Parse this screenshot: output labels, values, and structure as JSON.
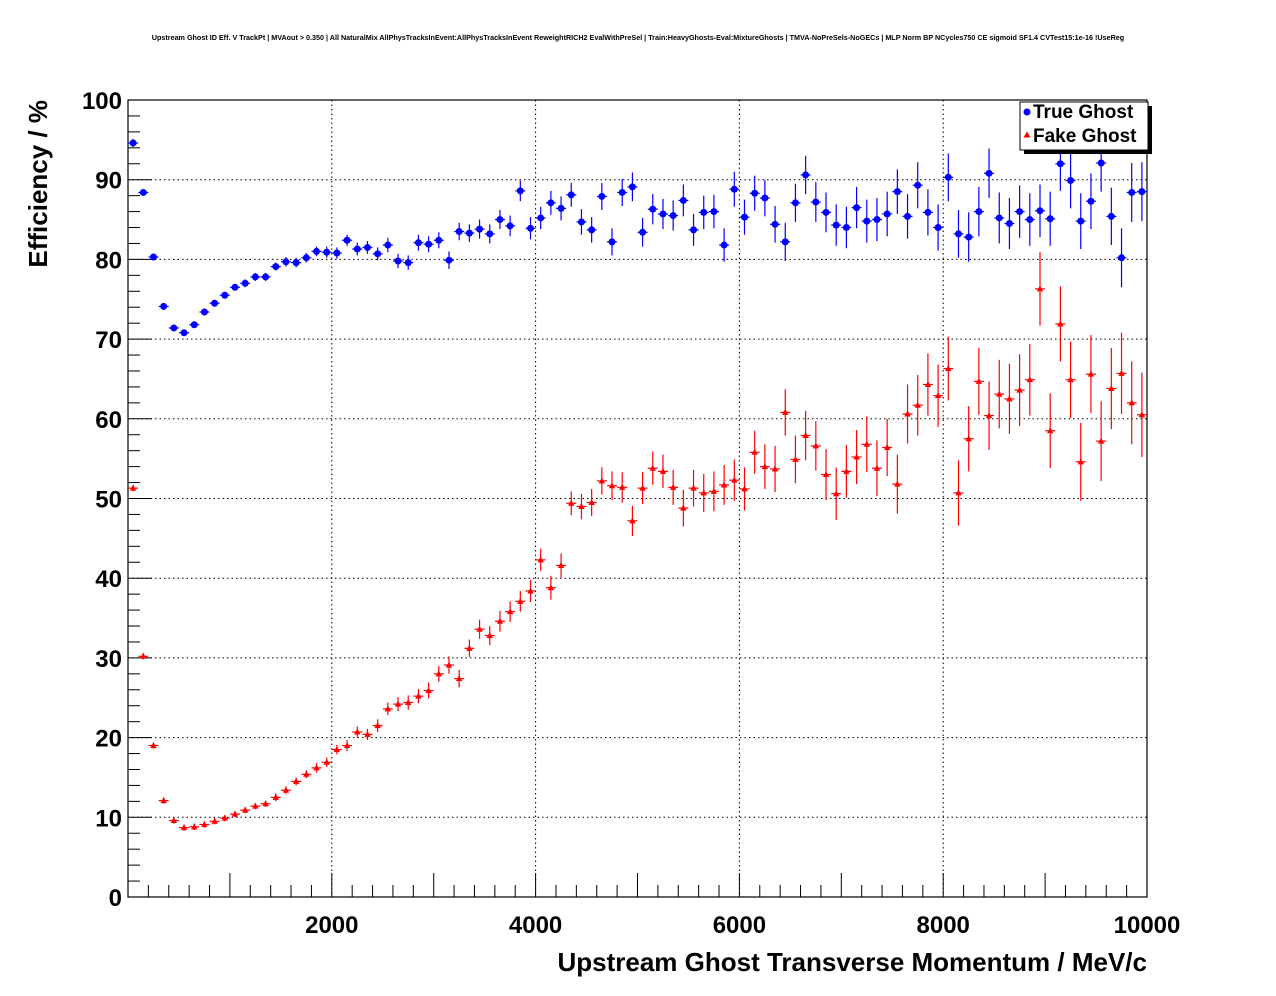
{
  "chart_data": {
    "type": "scatter",
    "title": "Upstream Ghost ID Eff. V TrackPt | MVAout > 0.350 | All NaturalMix AllPhysTracksInEvent:AllPhysTracksInEvent ReweightRICH2 EvalWithPreSel | Train:HeavyGhosts-Eval:MixtureGhosts | TMVA-NoPreSels-NoGECs | MLP Norm BP NCycles750 CE sigmoid SF1.4 CVTest15:1e-16 !UseReg",
    "xlabel": "Upstream Ghost Transverse Momentum / MeV/c",
    "ylabel": "Efficiency / %",
    "xlim": [
      0,
      10000
    ],
    "ylim": [
      0,
      100
    ],
    "x_ticks": [
      "2000",
      "4000",
      "6000",
      "8000",
      "10000"
    ],
    "y_ticks": [
      "0",
      "10",
      "20",
      "30",
      "40",
      "50",
      "60",
      "70",
      "80",
      "90",
      "100"
    ],
    "grid": true,
    "legend_position": "top-right",
    "series": [
      {
        "name": "True Ghost",
        "color": "#0000ff",
        "marker": "circle",
        "x": [
          50,
          150,
          250,
          350,
          450,
          550,
          650,
          750,
          850,
          950,
          1050,
          1150,
          1250,
          1350,
          1450,
          1550,
          1650,
          1750,
          1850,
          1950,
          2050,
          2150,
          2250,
          2350,
          2450,
          2550,
          2650,
          2750,
          2850,
          2950,
          3050,
          3150,
          3250,
          3350,
          3450,
          3550,
          3650,
          3750,
          3850,
          3950,
          4050,
          4150,
          4250,
          4350,
          4450,
          4550,
          4650,
          4750,
          4850,
          4950,
          5050,
          5150,
          5250,
          5350,
          5450,
          5550,
          5650,
          5750,
          5850,
          5950,
          6050,
          6150,
          6250,
          6350,
          6450,
          6550,
          6650,
          6750,
          6850,
          6950,
          7050,
          7150,
          7250,
          7350,
          7450,
          7550,
          7650,
          7750,
          7850,
          7950,
          8050,
          8150,
          8250,
          8350,
          8450,
          8550,
          8650,
          8750,
          8850,
          8950,
          9050,
          9150,
          9250,
          9350,
          9450,
          9550,
          9650,
          9750,
          9850,
          9950
        ],
        "y": [
          94.6,
          88.4,
          80.3,
          74.1,
          71.4,
          70.8,
          71.8,
          73.4,
          74.5,
          75.5,
          76.5,
          77.0,
          77.8,
          77.8,
          79.1,
          79.7,
          79.6,
          80.2,
          81.0,
          80.9,
          80.8,
          82.4,
          81.3,
          81.5,
          80.7,
          81.8,
          79.8,
          79.6,
          82.1,
          81.9,
          82.4,
          79.9,
          83.5,
          83.3,
          83.8,
          83.2,
          85.0,
          84.2,
          88.6,
          83.9,
          85.2,
          87.1,
          86.4,
          88.1,
          84.7,
          83.7,
          87.9,
          82.2,
          88.4,
          89.1,
          83.4,
          86.3,
          85.7,
          85.5,
          87.4,
          83.7,
          85.9,
          86.0,
          81.8,
          88.8,
          85.3,
          88.3,
          87.7,
          84.4,
          82.2,
          87.1,
          90.6,
          87.2,
          85.9,
          84.3,
          84.0,
          86.5,
          84.8,
          85.0,
          85.7,
          88.5,
          85.4,
          89.3,
          85.9,
          84.0,
          90.3,
          83.2,
          82.8,
          86.0,
          90.8,
          85.2,
          84.5,
          86.0,
          85.0,
          86.1,
          85.1,
          92.0,
          89.9,
          84.8,
          87.3,
          92.1,
          85.4,
          80.2,
          88.4,
          88.5
        ],
        "y_err": [
          0.5,
          0.4,
          0.4,
          0.4,
          0.4,
          0.4,
          0.4,
          0.4,
          0.4,
          0.4,
          0.4,
          0.5,
          0.5,
          0.5,
          0.5,
          0.6,
          0.6,
          0.6,
          0.6,
          0.7,
          0.7,
          0.7,
          0.8,
          0.8,
          0.8,
          0.9,
          0.9,
          0.9,
          1.0,
          1.0,
          1.0,
          1.1,
          1.1,
          1.1,
          1.2,
          1.2,
          1.2,
          1.3,
          1.3,
          1.4,
          1.4,
          1.5,
          1.5,
          1.5,
          1.6,
          1.6,
          1.7,
          1.7,
          1.7,
          1.8,
          1.8,
          1.9,
          1.9,
          1.9,
          2.0,
          2.0,
          2.1,
          2.1,
          2.1,
          2.2,
          2.2,
          2.2,
          2.3,
          2.3,
          2.4,
          2.4,
          2.4,
          2.5,
          2.5,
          2.6,
          2.6,
          2.6,
          2.7,
          2.7,
          2.8,
          2.8,
          2.8,
          2.9,
          2.9,
          2.9,
          3.0,
          3.0,
          3.1,
          3.1,
          3.1,
          3.2,
          3.2,
          3.3,
          3.3,
          3.3,
          3.4,
          3.4,
          3.5,
          3.5,
          3.5,
          3.6,
          3.6,
          3.7,
          3.7,
          3.7
        ]
      },
      {
        "name": "Fake Ghost",
        "color": "#ff0000",
        "marker": "triangle",
        "x": [
          50,
          150,
          250,
          350,
          450,
          550,
          650,
          750,
          850,
          950,
          1050,
          1150,
          1250,
          1350,
          1450,
          1550,
          1650,
          1750,
          1850,
          1950,
          2050,
          2150,
          2250,
          2350,
          2450,
          2550,
          2650,
          2750,
          2850,
          2950,
          3050,
          3150,
          3250,
          3350,
          3450,
          3550,
          3650,
          3750,
          3850,
          3950,
          4050,
          4150,
          4250,
          4350,
          4450,
          4550,
          4650,
          4750,
          4850,
          4950,
          5050,
          5150,
          5250,
          5350,
          5450,
          5550,
          5650,
          5750,
          5850,
          5950,
          6050,
          6150,
          6250,
          6350,
          6450,
          6550,
          6650,
          6750,
          6850,
          6950,
          7050,
          7150,
          7250,
          7350,
          7450,
          7550,
          7650,
          7750,
          7850,
          7950,
          8050,
          8150,
          8250,
          8350,
          8450,
          8550,
          8650,
          8750,
          8850,
          8950,
          9050,
          9150,
          9250,
          9350,
          9450,
          9550,
          9650,
          9750,
          9850,
          9950
        ],
        "y": [
          51.3,
          30.2,
          19.0,
          12.1,
          9.6,
          8.7,
          8.8,
          9.1,
          9.5,
          9.9,
          10.4,
          10.9,
          11.4,
          11.7,
          12.5,
          13.4,
          14.5,
          15.4,
          16.2,
          16.9,
          18.5,
          19.0,
          20.7,
          20.4,
          21.5,
          23.6,
          24.2,
          24.4,
          25.2,
          25.9,
          28.0,
          29.1,
          27.4,
          31.2,
          33.6,
          32.8,
          34.6,
          35.8,
          37.1,
          38.4,
          42.3,
          38.8,
          41.6,
          49.4,
          49.0,
          49.5,
          52.2,
          51.6,
          51.4,
          47.2,
          51.3,
          53.8,
          53.4,
          51.4,
          48.8,
          51.3,
          50.7,
          50.9,
          51.7,
          52.3,
          51.2,
          55.8,
          54.0,
          53.7,
          60.8,
          54.9,
          57.9,
          56.6,
          53.0,
          50.6,
          53.4,
          55.2,
          56.8,
          53.8,
          56.4,
          51.8,
          60.6,
          61.7,
          64.3,
          62.9,
          66.3,
          50.7,
          57.5,
          64.7,
          60.4,
          63.1,
          62.5,
          63.6,
          64.9,
          76.3,
          58.5,
          71.9,
          64.9,
          54.6,
          65.6,
          57.2,
          63.8,
          65.7,
          62.0,
          60.5
        ],
        "y_err": [
          0.4,
          0.4,
          0.4,
          0.4,
          0.4,
          0.4,
          0.4,
          0.4,
          0.4,
          0.4,
          0.4,
          0.4,
          0.4,
          0.4,
          0.5,
          0.5,
          0.5,
          0.5,
          0.6,
          0.6,
          0.6,
          0.7,
          0.7,
          0.7,
          0.8,
          0.8,
          0.9,
          0.9,
          0.9,
          1.0,
          1.0,
          1.1,
          1.1,
          1.1,
          1.2,
          1.2,
          1.3,
          1.3,
          1.3,
          1.4,
          1.4,
          1.5,
          1.5,
          1.5,
          1.6,
          1.7,
          1.7,
          1.8,
          1.9,
          1.9,
          2.0,
          2.1,
          2.1,
          2.2,
          2.3,
          2.3,
          2.4,
          2.5,
          2.5,
          2.6,
          2.7,
          2.7,
          2.8,
          2.9,
          2.9,
          3.0,
          3.1,
          3.1,
          3.2,
          3.3,
          3.3,
          3.4,
          3.5,
          3.5,
          3.6,
          3.7,
          3.7,
          3.8,
          3.9,
          3.9,
          4.0,
          4.1,
          4.1,
          4.2,
          4.3,
          4.3,
          4.4,
          4.5,
          4.5,
          4.6,
          4.7,
          4.7,
          4.8,
          4.9,
          4.9,
          5.0,
          5.1,
          5.1,
          5.2,
          5.3
        ]
      }
    ]
  }
}
